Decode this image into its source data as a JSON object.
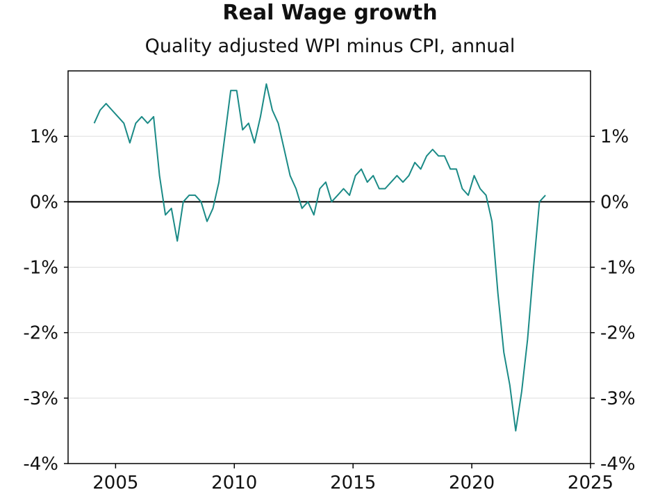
{
  "chart_data": {
    "type": "line",
    "title": "Real Wage growth",
    "subtitle": "Quality adjusted WPI minus CPI, annual",
    "xlabel": "",
    "ylabel": "",
    "xlim": [
      2003.0,
      2025.0
    ],
    "ylim": [
      -4,
      2
    ],
    "x_ticks": [
      2005,
      2010,
      2015,
      2020,
      2025
    ],
    "x_tick_labels": [
      "2005",
      "2010",
      "2015",
      "2020",
      "2025"
    ],
    "y_ticks": [
      1,
      0,
      -1,
      -2,
      -3,
      -4
    ],
    "y_tick_labels": [
      "1%",
      "0%",
      "-1%",
      "-2%",
      "-3%",
      "-4%"
    ],
    "grid": "horizontal",
    "legend": "none",
    "line_color": "#1a8a86",
    "series": [
      {
        "x": [
          2004.1,
          2004.35,
          2004.6,
          2004.85,
          2005.1,
          2005.35,
          2005.6,
          2005.85,
          2006.1,
          2006.35,
          2006.6,
          2006.85,
          2007.1,
          2007.35,
          2007.6,
          2007.85,
          2008.1,
          2008.35,
          2008.6,
          2008.85,
          2009.1,
          2009.35,
          2009.6,
          2009.85,
          2010.1,
          2010.35,
          2010.6,
          2010.85,
          2011.1,
          2011.35,
          2011.6,
          2011.85,
          2012.1,
          2012.35,
          2012.6,
          2012.85,
          2013.1,
          2013.35,
          2013.6,
          2013.85,
          2014.1,
          2014.35,
          2014.6,
          2014.85,
          2015.1,
          2015.35,
          2015.6,
          2015.85,
          2016.1,
          2016.35,
          2016.6,
          2016.85,
          2017.1,
          2017.35,
          2017.6,
          2017.85,
          2018.1,
          2018.35,
          2018.6,
          2018.85,
          2019.1,
          2019.35,
          2019.6,
          2019.85,
          2020.1,
          2020.35,
          2020.6,
          2020.85,
          2021.1,
          2021.35,
          2021.6,
          2021.85,
          2022.1,
          2022.35,
          2022.6,
          2022.85,
          2023.1
        ],
        "values": [
          1.2,
          1.4,
          1.5,
          1.4,
          1.3,
          1.2,
          0.9,
          1.2,
          1.3,
          1.2,
          1.3,
          0.4,
          -0.2,
          -0.1,
          -0.6,
          0.0,
          0.1,
          0.1,
          0.0,
          -0.3,
          -0.1,
          0.3,
          1.0,
          1.7,
          1.7,
          1.1,
          1.2,
          0.9,
          1.3,
          1.8,
          1.4,
          1.2,
          0.8,
          0.4,
          0.2,
          -0.1,
          0.0,
          -0.2,
          0.2,
          0.3,
          0.0,
          0.1,
          0.2,
          0.1,
          0.4,
          0.5,
          0.3,
          0.4,
          0.2,
          0.2,
          0.3,
          0.4,
          0.3,
          0.4,
          0.6,
          0.5,
          0.7,
          0.8,
          0.7,
          0.7,
          0.5,
          0.5,
          0.2,
          0.1,
          0.4,
          0.2,
          0.1,
          -0.3,
          -1.4,
          -2.3,
          -2.8,
          -3.5,
          -2.9,
          -2.1,
          -1.0,
          0.0,
          0.1
        ]
      }
    ]
  }
}
